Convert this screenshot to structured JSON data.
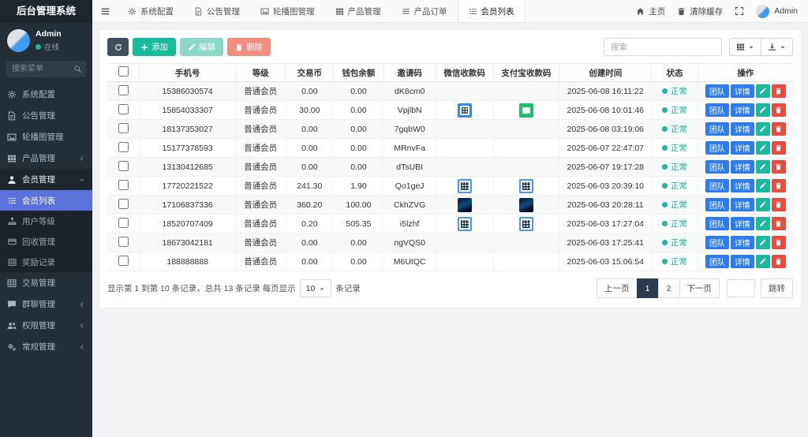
{
  "app": {
    "title": "后台管理系统"
  },
  "user": {
    "name": "Admin",
    "status": "在线"
  },
  "sidebar": {
    "search_placeholder": "搜索菜单",
    "items": [
      "系统配置",
      "公告管理",
      "轮播图管理",
      "产品管理",
      "会员管理",
      "交易管理",
      "群聊管理",
      "权限管理",
      "常规管理"
    ],
    "submenu": [
      "会员列表",
      "用户等级",
      "回收管理",
      "奖励记录"
    ],
    "active_item": "会员列表"
  },
  "topbar": {
    "tabs": [
      "系统配置",
      "公告管理",
      "轮播图管理",
      "产品管理",
      "产品订单",
      "会员列表"
    ],
    "active_tab": "会员列表",
    "home": "主页",
    "clear_cache": "清除缓存",
    "user": "Admin"
  },
  "toolbar": {
    "add": "添加",
    "edit": "编辑",
    "delete": "删除",
    "search_placeholder": "搜索"
  },
  "table": {
    "headers": [
      "手机号",
      "等级",
      "交易币",
      "钱包余额",
      "邀请码",
      "微信收款码",
      "支付宝收款码",
      "创建时间",
      "状态",
      "操作"
    ],
    "actions": {
      "team": "团队",
      "detail": "详情"
    },
    "rows": [
      {
        "phone": "15386030574",
        "level": "普通会员",
        "coin": "0.00",
        "balance": "0.00",
        "invite": "dK8cm0",
        "wechat": null,
        "alipay": null,
        "created": "2025-06-08 16:11:22",
        "status": "正常"
      },
      {
        "phone": "15854033307",
        "level": "普通会员",
        "coin": "30.00",
        "balance": "0.00",
        "invite": "VpjlbN",
        "wechat": "qr_solid_blue",
        "alipay": "pay_green",
        "created": "2025-06-08 10:01:46",
        "status": "正常"
      },
      {
        "phone": "18137353027",
        "level": "普通会员",
        "coin": "0.00",
        "balance": "0.00",
        "invite": "7gqbW0",
        "wechat": null,
        "alipay": null,
        "created": "2025-06-08 03:19:06",
        "status": "正常"
      },
      {
        "phone": "15177378593",
        "level": "普通会员",
        "coin": "0.00",
        "balance": "0.00",
        "invite": "MRnvFa",
        "wechat": null,
        "alipay": null,
        "created": "2025-06-07 22:47:07",
        "status": "正常"
      },
      {
        "phone": "13130412685",
        "level": "普通会员",
        "coin": "0.00",
        "balance": "0.00",
        "invite": "dTsUBI",
        "wechat": null,
        "alipay": null,
        "created": "2025-06-07 19:17:28",
        "status": "正常"
      },
      {
        "phone": "17720221522",
        "level": "普通会员",
        "coin": "241.30",
        "balance": "1.90",
        "invite": "Qo1geJ",
        "wechat": "qr_outline_blue",
        "alipay": "qr_outline_blue",
        "created": "2025-06-03 20:39:10",
        "status": "正常"
      },
      {
        "phone": "17106837336",
        "level": "普通会员",
        "coin": "360.20",
        "balance": "100.00",
        "invite": "CkhZVG",
        "wechat": "img_dark",
        "alipay": "img_dark",
        "created": "2025-06-03 20:28:11",
        "status": "正常"
      },
      {
        "phone": "18520707409",
        "level": "普通会员",
        "coin": "0.20",
        "balance": "505.35",
        "invite": "i5lzhf",
        "wechat": "qr_outline_blue",
        "alipay": "qr_outline_blue",
        "created": "2025-06-03 17:27:04",
        "status": "正常"
      },
      {
        "phone": "18673042181",
        "level": "普通会员",
        "coin": "0.00",
        "balance": "0.00",
        "invite": "ngVQS0",
        "wechat": null,
        "alipay": null,
        "created": "2025-06-03 17:25:41",
        "status": "正常"
      },
      {
        "phone": "188888888",
        "level": "普通会员",
        "coin": "0.00",
        "balance": "0.00",
        "invite": "M6UtQC",
        "wechat": null,
        "alipay": null,
        "created": "2025-06-03 15:06:54",
        "status": "正常"
      }
    ]
  },
  "pagination": {
    "summary_before": "显示第 1 到第 10 条记录，总共 13 条记录 每页显示",
    "page_size": "10",
    "summary_after": "条记录",
    "prev": "上一页",
    "pages": [
      "1",
      "2"
    ],
    "active_page": "1",
    "next": "下一页",
    "jump_label": "跳转"
  },
  "colors": {
    "accent_green": "#18bc9c",
    "primary_blue": "#2c7bf2",
    "danger_red": "#e74c3c",
    "sidebar_active_blue": "#5a72da",
    "status_green": "#18bc9c",
    "pagination_active": "#2c3c50"
  }
}
